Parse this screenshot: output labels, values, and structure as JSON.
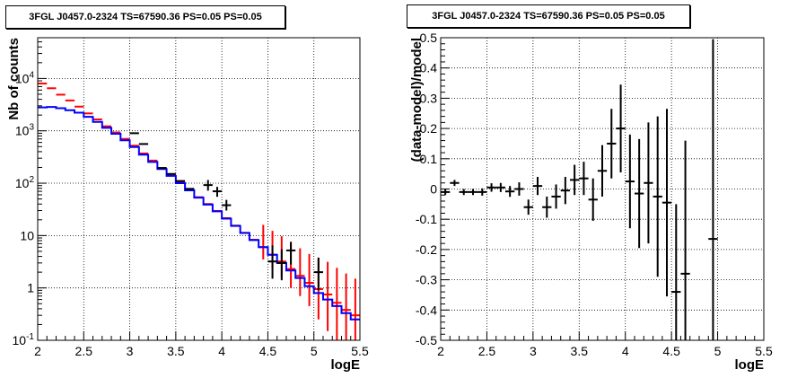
{
  "chart_data": [
    {
      "type": "histogram",
      "title": "3FGL J0457.0-2324 TS=67590.36 PS=0.05 PS=0.05",
      "xlabel": "logE",
      "ylabel": "Nb of counts",
      "y_scale": "log",
      "xlim": [
        2,
        5.5
      ],
      "ylim": [
        0.1,
        60000
      ],
      "x_ticks": [
        "2",
        "2.5",
        "3",
        "3.5",
        "4",
        "4.5",
        "5",
        "5.5"
      ],
      "y_ticks": [
        "10^{-1}",
        "1",
        "10",
        "10^{2}",
        "10^{3}",
        "10^{4}"
      ],
      "grid": true,
      "bin_edges": [
        2.0,
        2.1,
        2.2,
        2.3,
        2.4,
        2.5,
        2.6,
        2.7,
        2.8,
        2.9,
        3.0,
        3.1,
        3.2,
        3.3,
        3.4,
        3.5,
        3.6,
        3.7,
        3.8,
        3.9,
        4.0,
        4.1,
        4.2,
        4.3,
        4.4,
        4.5,
        4.6,
        4.7,
        4.8,
        4.9,
        5.0,
        5.1,
        5.2,
        5.3,
        5.4,
        5.5
      ],
      "series": [
        {
          "color": "#ff0000",
          "style": "step-with-errors",
          "values": [
            8000,
            6500,
            4900,
            3800,
            2900,
            2150,
            1650,
            1220,
            930,
            700,
            520,
            370,
            270,
            195,
            142,
            103,
            74,
            54,
            40,
            29.5,
            21.5,
            15.5,
            11.3,
            8.3,
            6.0,
            4.3,
            3.2,
            2.3,
            1.7,
            1.25,
            0.95,
            0.75,
            0.52,
            0.38,
            0.3
          ],
          "errors_low": [
            null,
            null,
            null,
            null,
            null,
            null,
            null,
            null,
            null,
            null,
            null,
            null,
            null,
            null,
            null,
            null,
            null,
            null,
            null,
            null,
            null,
            null,
            null,
            null,
            2.5,
            2.0,
            1.6,
            1.3,
            1.0,
            0.8,
            0.7,
            0.6,
            0.45,
            0.34,
            0.27
          ],
          "errors_high": [
            null,
            null,
            null,
            null,
            null,
            null,
            null,
            null,
            null,
            null,
            null,
            null,
            null,
            null,
            null,
            null,
            null,
            null,
            null,
            null,
            null,
            null,
            null,
            null,
            10,
            8,
            6.5,
            5,
            4,
            3.2,
            2.8,
            2.4,
            1.9,
            1.5,
            1.2
          ]
        },
        {
          "color": "#0000ff",
          "style": "step",
          "values": [
            2800,
            2850,
            2700,
            2480,
            2220,
            1850,
            1480,
            1140,
            880,
            660,
            490,
            350,
            255,
            186,
            138,
            100,
            73,
            53,
            39,
            29,
            21,
            15.3,
            11.2,
            8.2,
            6.0,
            4.3,
            3.0,
            2.15,
            1.55,
            1.08,
            0.8,
            0.6,
            0.45,
            0.33,
            0.25
          ]
        },
        {
          "color": "#000000",
          "style": "points-with-errors",
          "points": [
            {
              "x": 3.05,
              "y": 900
            },
            {
              "x": 3.15,
              "y": 560
            },
            {
              "x": 3.35,
              "y": 195
            },
            {
              "x": 3.45,
              "y": 150
            },
            {
              "x": 3.55,
              "y": 110
            },
            {
              "x": 3.65,
              "y": 78
            },
            {
              "x": 3.85,
              "y": 92,
              "ylow": 72,
              "yhigh": 115
            },
            {
              "x": 3.95,
              "y": 70,
              "ylow": 55,
              "yhigh": 85
            },
            {
              "x": 4.05,
              "y": 38,
              "ylow": 30,
              "yhigh": 48
            },
            {
              "x": 4.55,
              "y": 3.2,
              "ylow": 1.5,
              "yhigh": 6.5
            },
            {
              "x": 4.65,
              "y": 3.0,
              "ylow": 1.4,
              "yhigh": 5.5
            },
            {
              "x": 4.75,
              "y": 5.2,
              "ylow": 2.8,
              "yhigh": 7.6
            },
            {
              "x": 5.05,
              "y": 2.0,
              "ylow": 0.9,
              "yhigh": 3.8
            }
          ]
        }
      ]
    },
    {
      "type": "scatter",
      "title": "3FGL J0457.0-2324 TS=67590.36 PS=0.05 PS=0.05",
      "xlabel": "logE",
      "ylabel": "(data-model)/model",
      "xlim": [
        2,
        5.5
      ],
      "ylim": [
        -0.5,
        0.5
      ],
      "x_ticks": [
        "2",
        "2.5",
        "3",
        "3.5",
        "4",
        "4.5",
        "5",
        "5.5"
      ],
      "y_ticks": [
        "-0.5",
        "-0.4",
        "-0.3",
        "-0.2",
        "-0.1",
        "0",
        "0.1",
        "0.2",
        "0.3",
        "0.4",
        "0.5"
      ],
      "grid": true,
      "series": [
        {
          "color": "#000000",
          "points": [
            {
              "x": 2.05,
              "y": -0.01,
              "err": 0.01
            },
            {
              "x": 2.15,
              "y": 0.02,
              "err": 0.01
            },
            {
              "x": 2.25,
              "y": -0.01,
              "err": 0.01
            },
            {
              "x": 2.35,
              "y": -0.01,
              "err": 0.01
            },
            {
              "x": 2.45,
              "y": -0.01,
              "err": 0.012
            },
            {
              "x": 2.55,
              "y": 0.005,
              "err": 0.014
            },
            {
              "x": 2.65,
              "y": 0.005,
              "err": 0.015
            },
            {
              "x": 2.75,
              "y": -0.008,
              "err": 0.018
            },
            {
              "x": 2.85,
              "y": 0.0,
              "err": 0.022
            },
            {
              "x": 2.95,
              "y": -0.06,
              "err": 0.025
            },
            {
              "x": 3.05,
              "y": 0.01,
              "err": 0.03
            },
            {
              "x": 3.15,
              "y": -0.06,
              "err": 0.035
            },
            {
              "x": 3.25,
              "y": -0.025,
              "err": 0.04
            },
            {
              "x": 3.35,
              "y": -0.005,
              "err": 0.045
            },
            {
              "x": 3.45,
              "y": 0.03,
              "err": 0.05
            },
            {
              "x": 3.55,
              "y": 0.035,
              "err": 0.055
            },
            {
              "x": 3.65,
              "y": -0.035,
              "err": 0.07
            },
            {
              "x": 3.75,
              "y": 0.06,
              "err": 0.085
            },
            {
              "x": 3.85,
              "y": 0.15,
              "err": 0.115
            },
            {
              "x": 3.95,
              "y": 0.2,
              "err": 0.145
            },
            {
              "x": 4.05,
              "y": 0.025,
              "err": 0.155
            },
            {
              "x": 4.15,
              "y": -0.015,
              "err": 0.18
            },
            {
              "x": 4.25,
              "y": 0.02,
              "err": 0.2
            },
            {
              "x": 4.35,
              "y": -0.025,
              "err": 0.265
            },
            {
              "x": 4.45,
              "y": -0.045,
              "err": 0.31
            },
            {
              "x": 4.55,
              "y": -0.34,
              "err": 0.29
            },
            {
              "x": 4.65,
              "y": -0.28,
              "err": 0.44
            },
            {
              "x": 4.95,
              "y": -0.165,
              "err": 0.66
            }
          ]
        }
      ]
    }
  ],
  "titles": {
    "left": "3FGL J0457.0-2324 TS=67590.36 PS=0.05 PS=0.05",
    "right": "3FGL J0457.0-2324 TS=67590.36 PS=0.05 PS=0.05"
  }
}
